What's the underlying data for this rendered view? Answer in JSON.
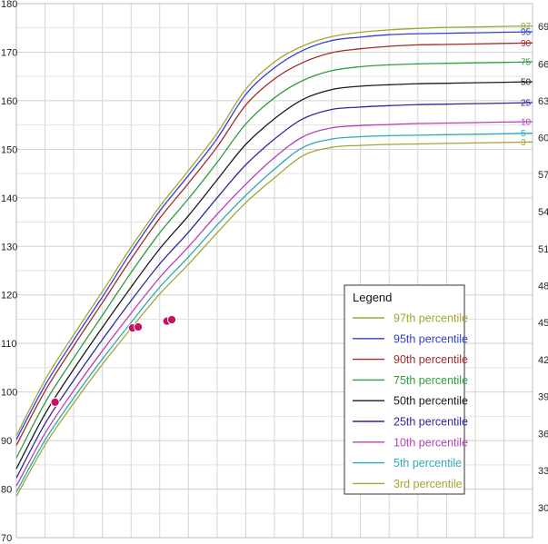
{
  "chart_data": {
    "type": "line",
    "title": "",
    "xlabel": "",
    "ylabel": "",
    "x_unit": "age_years",
    "xlim": [
      2,
      20
    ],
    "ylim": [
      70,
      180
    ],
    "y_ticks": [
      70,
      80,
      90,
      100,
      110,
      120,
      130,
      140,
      150,
      160,
      170,
      180
    ],
    "right_ticks": [
      {
        "label": "69",
        "y": 175.3
      },
      {
        "label": "66",
        "y": 167.6
      },
      {
        "label": "63",
        "y": 160.0
      },
      {
        "label": "60",
        "y": 152.4
      },
      {
        "label": "57",
        "y": 144.8
      },
      {
        "label": "54",
        "y": 137.2
      },
      {
        "label": "51",
        "y": 129.5
      },
      {
        "label": "48",
        "y": 121.9
      },
      {
        "label": "45",
        "y": 114.3
      },
      {
        "label": "42",
        "y": 106.7
      },
      {
        "label": "39",
        "y": 99.1
      },
      {
        "label": "36",
        "y": 91.4
      },
      {
        "label": "33",
        "y": 83.8
      },
      {
        "label": "30",
        "y": 76.2
      }
    ],
    "grid": true,
    "legend_position": "bottom-right",
    "legend_title": "Legend",
    "x": [
      2,
      3,
      4,
      5,
      6,
      7,
      8,
      9,
      10,
      11,
      12,
      13,
      14,
      15,
      16,
      17,
      18,
      19,
      20
    ],
    "series": [
      {
        "name": "97th percentile",
        "end_label": "97",
        "color": "#a4a632",
        "values": [
          91.0,
          102.5,
          111.8,
          120.7,
          129.8,
          138.2,
          145.6,
          153.3,
          162.4,
          168.0,
          171.3,
          173.2,
          174.1,
          174.6,
          174.9,
          175.1,
          175.2,
          175.3,
          175.4
        ]
      },
      {
        "name": "95th percentile",
        "end_label": "95",
        "color": "#2e3ed8",
        "values": [
          90.2,
          101.4,
          110.7,
          119.6,
          128.8,
          137.3,
          144.6,
          152.2,
          161.3,
          166.8,
          170.4,
          172.4,
          173.1,
          173.6,
          173.8,
          173.9,
          174.0,
          174.1,
          174.2
        ]
      },
      {
        "name": "90th percentile",
        "end_label": "90",
        "color": "#a52a2a",
        "values": [
          89.0,
          100.2,
          109.5,
          118.4,
          127.4,
          135.8,
          143.0,
          150.5,
          159.1,
          164.5,
          167.9,
          169.9,
          170.7,
          171.2,
          171.5,
          171.6,
          171.7,
          171.8,
          171.9
        ]
      },
      {
        "name": "75th percentile",
        "end_label": "75",
        "color": "#2f9e3c",
        "values": [
          86.4,
          97.8,
          107.0,
          115.8,
          124.6,
          132.8,
          139.8,
          147.3,
          155.2,
          160.6,
          164.2,
          166.2,
          167.0,
          167.4,
          167.6,
          167.7,
          167.8,
          167.9,
          168.0
        ]
      },
      {
        "name": "50th percentile",
        "end_label": "50",
        "color": "#1a1a1a",
        "values": [
          84.2,
          95.5,
          104.7,
          113.3,
          121.6,
          129.5,
          136.3,
          143.7,
          151.0,
          156.3,
          160.3,
          162.3,
          163.0,
          163.3,
          163.5,
          163.6,
          163.7,
          163.8,
          163.9
        ]
      },
      {
        "name": "25th percentile",
        "end_label": "25",
        "color": "#2a2aa0",
        "values": [
          82.3,
          93.5,
          102.4,
          110.8,
          118.8,
          126.4,
          132.9,
          140.0,
          146.8,
          152.1,
          156.3,
          158.2,
          158.7,
          159.0,
          159.2,
          159.3,
          159.4,
          159.5,
          159.6
        ]
      },
      {
        "name": "10th percentile",
        "end_label": "10",
        "color": "#b83fb8",
        "values": [
          80.6,
          91.5,
          100.3,
          108.5,
          116.2,
          123.6,
          129.9,
          136.6,
          142.8,
          148.3,
          152.6,
          154.4,
          154.9,
          155.1,
          155.3,
          155.4,
          155.5,
          155.6,
          155.7
        ]
      },
      {
        "name": "5th percentile",
        "end_label": "5",
        "color": "#2ca9b8",
        "values": [
          79.4,
          90.1,
          98.8,
          106.8,
          114.3,
          121.6,
          127.8,
          134.4,
          140.5,
          145.9,
          150.4,
          152.1,
          152.6,
          152.8,
          152.9,
          153.0,
          153.1,
          153.2,
          153.3
        ]
      },
      {
        "name": "3rd percentile",
        "end_label": "3",
        "color": "#a4a632",
        "values": [
          78.5,
          89.1,
          97.7,
          105.7,
          113.1,
          120.2,
          126.3,
          132.8,
          139.0,
          144.1,
          148.7,
          150.4,
          150.8,
          151.0,
          151.1,
          151.2,
          151.3,
          151.4,
          151.5
        ]
      }
    ],
    "points": [
      {
        "x": 3.35,
        "y": 97.9
      },
      {
        "x": 6.05,
        "y": 113.2
      },
      {
        "x": 6.25,
        "y": 113.4
      },
      {
        "x": 7.25,
        "y": 114.6
      },
      {
        "x": 7.42,
        "y": 114.9
      }
    ],
    "point_color": "#c8115f"
  }
}
